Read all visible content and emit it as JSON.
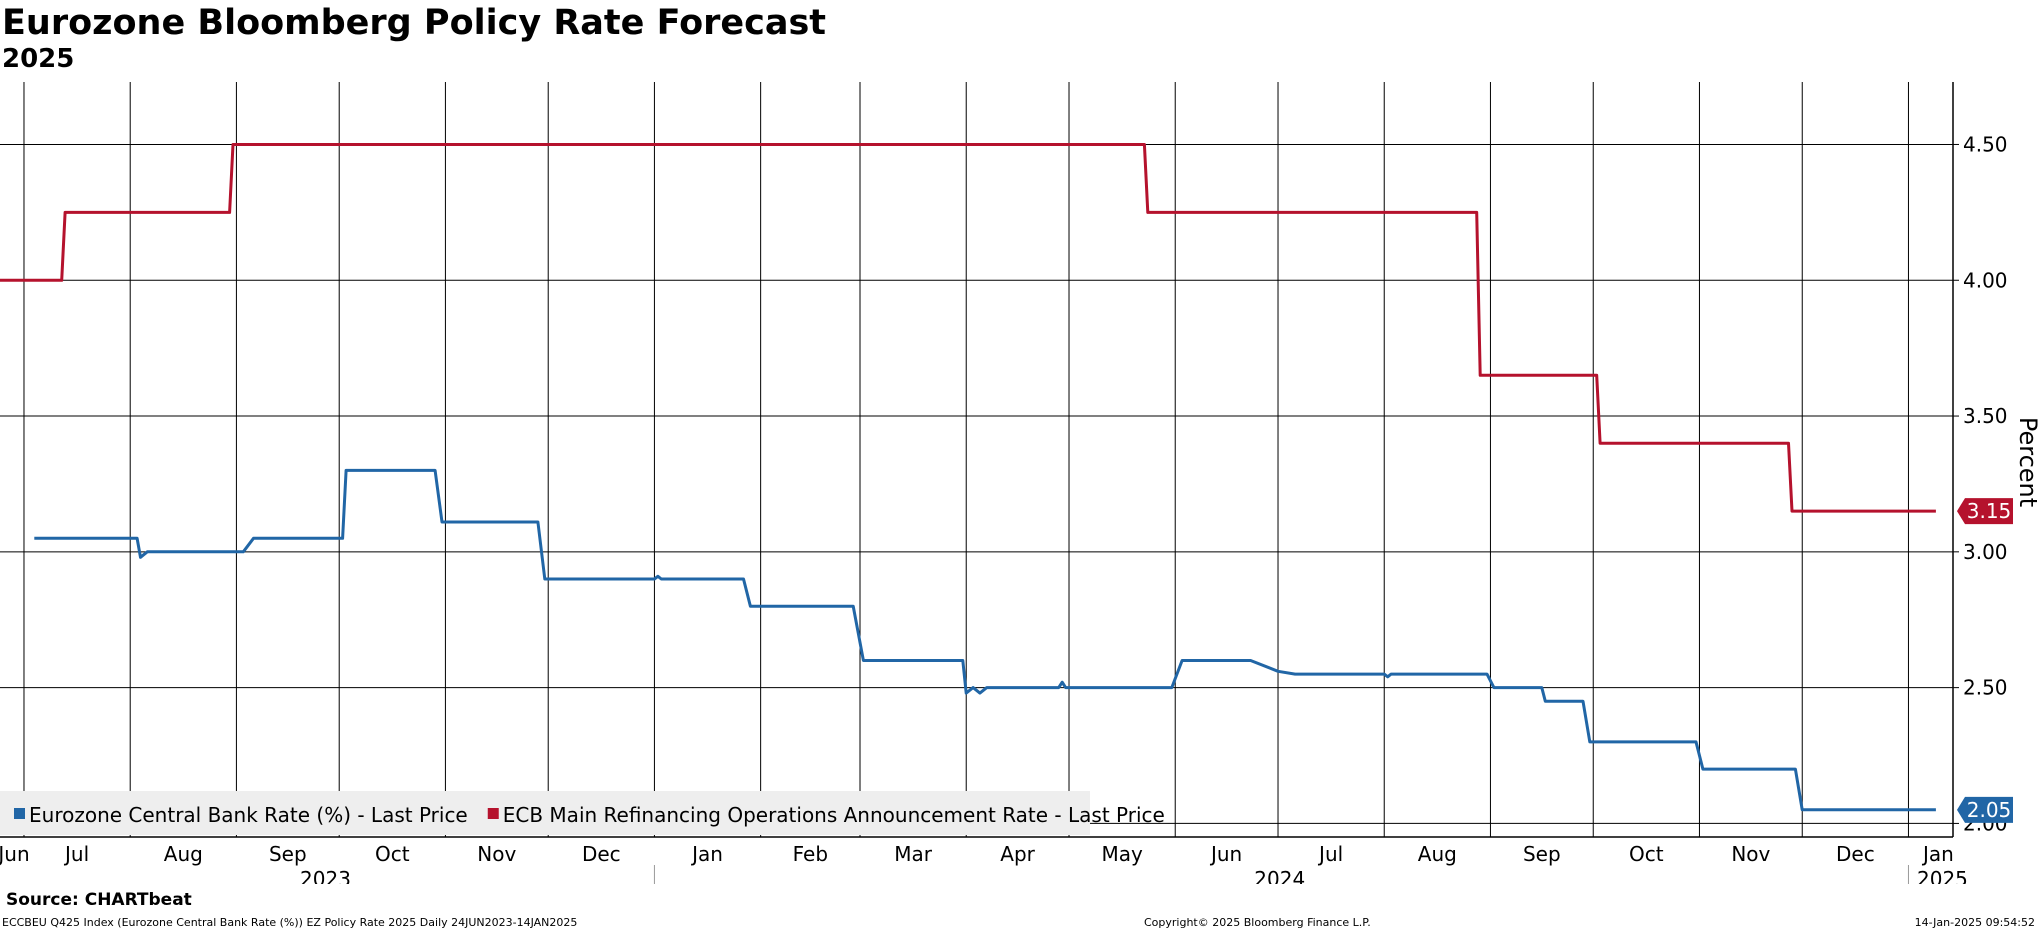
{
  "chart_data": {
    "type": "line",
    "title": "Eurozone Bloomberg Policy Rate Forecast",
    "subtitle": "2025",
    "ylabel": "Percent",
    "ylim": [
      1.95,
      4.73
    ],
    "y_ticks": [
      "2.00",
      "2.50",
      "3.00",
      "3.50",
      "4.00",
      "4.50"
    ],
    "x_range": [
      "2023-06-24",
      "2025-01-14"
    ],
    "x_month_ticks": [
      {
        "date": "2023-07-01",
        "label": "Jul"
      },
      {
        "date": "2023-08-01",
        "label": "Aug"
      },
      {
        "date": "2023-09-01",
        "label": "Sep"
      },
      {
        "date": "2023-10-01",
        "label": "Oct"
      },
      {
        "date": "2023-11-01",
        "label": "Nov"
      },
      {
        "date": "2023-12-01",
        "label": "Dec"
      },
      {
        "date": "2024-01-01",
        "label": "Jan"
      },
      {
        "date": "2024-02-01",
        "label": "Feb"
      },
      {
        "date": "2024-03-01",
        "label": "Mar"
      },
      {
        "date": "2024-04-01",
        "label": "Apr"
      },
      {
        "date": "2024-05-01",
        "label": "May"
      },
      {
        "date": "2024-06-01",
        "label": "Jun"
      },
      {
        "date": "2024-07-01",
        "label": "Jul"
      },
      {
        "date": "2024-08-01",
        "label": "Aug"
      },
      {
        "date": "2024-09-01",
        "label": "Sep"
      },
      {
        "date": "2024-10-01",
        "label": "Oct"
      },
      {
        "date": "2024-11-01",
        "label": "Nov"
      },
      {
        "date": "2024-12-01",
        "label": "Dec"
      },
      {
        "date": "2025-01-01",
        "label": "Jan"
      }
    ],
    "x_leading_label": "Jun",
    "x_year_labels": [
      {
        "label": "2023",
        "from": "2023-06-24",
        "to": "2023-12-31"
      },
      {
        "label": "2024",
        "from": "2024-01-01",
        "to": "2024-12-31"
      },
      {
        "label": "2025",
        "from": "2025-01-01",
        "to": "2025-01-14"
      }
    ],
    "x_year_separators": [
      "2024-01-01",
      "2025-01-01"
    ],
    "grid": true,
    "legend_position": "bottom-left",
    "series": [
      {
        "name": "Eurozone Central Bank Rate (%) - Last Price",
        "color": "#2166a6",
        "last_value": "2.05",
        "points": [
          [
            "2023-07-04",
            3.05
          ],
          [
            "2023-08-03",
            3.05
          ],
          [
            "2023-08-04",
            2.98
          ],
          [
            "2023-08-06",
            3.0
          ],
          [
            "2023-09-03",
            3.0
          ],
          [
            "2023-09-06",
            3.05
          ],
          [
            "2023-10-02",
            3.05
          ],
          [
            "2023-10-03",
            3.3
          ],
          [
            "2023-10-29",
            3.3
          ],
          [
            "2023-10-31",
            3.11
          ],
          [
            "2023-11-28",
            3.11
          ],
          [
            "2023-11-30",
            2.9
          ],
          [
            "2024-01-01",
            2.9
          ],
          [
            "2024-01-02",
            2.91
          ],
          [
            "2024-01-03",
            2.9
          ],
          [
            "2024-01-27",
            2.9
          ],
          [
            "2024-01-29",
            2.8
          ],
          [
            "2024-02-28",
            2.8
          ],
          [
            "2024-03-02",
            2.6
          ],
          [
            "2024-03-31",
            2.6
          ],
          [
            "2024-04-01",
            2.48
          ],
          [
            "2024-04-03",
            2.5
          ],
          [
            "2024-04-05",
            2.48
          ],
          [
            "2024-04-07",
            2.5
          ],
          [
            "2024-04-28",
            2.5
          ],
          [
            "2024-04-29",
            2.52
          ],
          [
            "2024-04-30",
            2.5
          ],
          [
            "2024-05-31",
            2.5
          ],
          [
            "2024-06-03",
            2.6
          ],
          [
            "2024-06-23",
            2.6
          ],
          [
            "2024-07-01",
            2.56
          ],
          [
            "2024-07-06",
            2.55
          ],
          [
            "2024-08-01",
            2.55
          ],
          [
            "2024-08-02",
            2.54
          ],
          [
            "2024-08-03",
            2.55
          ],
          [
            "2024-08-31",
            2.55
          ],
          [
            "2024-09-02",
            2.5
          ],
          [
            "2024-09-16",
            2.5
          ],
          [
            "2024-09-17",
            2.45
          ],
          [
            "2024-09-28",
            2.45
          ],
          [
            "2024-09-30",
            2.3
          ],
          [
            "2024-10-31",
            2.3
          ],
          [
            "2024-11-02",
            2.2
          ],
          [
            "2024-11-29",
            2.2
          ],
          [
            "2024-12-01",
            2.05
          ],
          [
            "2025-01-09",
            2.05
          ]
        ]
      },
      {
        "name": "ECB Main Refinancing Operations Announcement Rate - Last Price",
        "color": "#b5122d",
        "last_value": "3.15",
        "points": [
          [
            "2023-06-24",
            4.0
          ],
          [
            "2023-07-12",
            4.0
          ],
          [
            "2023-07-13",
            4.25
          ],
          [
            "2023-08-30",
            4.25
          ],
          [
            "2023-08-31",
            4.5
          ],
          [
            "2024-05-23",
            4.5
          ],
          [
            "2024-05-24",
            4.25
          ],
          [
            "2024-08-28",
            4.25
          ],
          [
            "2024-08-29",
            3.65
          ],
          [
            "2024-10-02",
            3.65
          ],
          [
            "2024-10-03",
            3.4
          ],
          [
            "2024-11-27",
            3.4
          ],
          [
            "2024-11-28",
            3.15
          ],
          [
            "2025-01-09",
            3.15
          ]
        ]
      }
    ]
  },
  "source": "Source: CHARTbeat",
  "footer": {
    "left": "ECCBEU Q425 Index (Eurozone Central Bank Rate (%)) EZ Policy Rate 2025  Daily 24JUN2023-14JAN2025",
    "center": "Copyright© 2025 Bloomberg Finance L.P.",
    "right": "14-Jan-2025 09:54:52"
  }
}
